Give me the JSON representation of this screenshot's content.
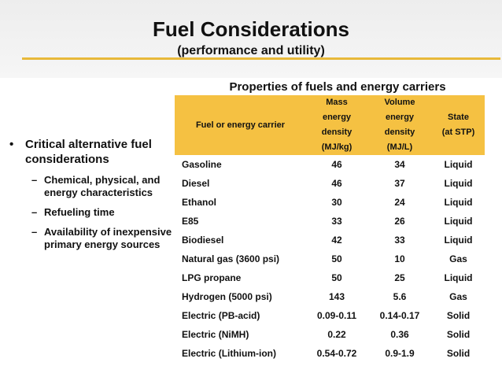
{
  "slide": {
    "title": "Fuel Considerations",
    "subtitle": "(performance and utility)",
    "accent_color": "#e8b93a",
    "header_fill": "#f5c142"
  },
  "bullets": {
    "main": "Critical alternative fuel considerations",
    "subs": [
      "Chemical, physical, and energy characteristics",
      "Refueling time",
      "Availability of inexpensive primary energy sources"
    ]
  },
  "table": {
    "title": "Properties of fuels and energy carriers",
    "headers": {
      "fuel": "Fuel or energy carrier",
      "mass": [
        "Mass",
        "energy",
        "density",
        "(MJ/kg)"
      ],
      "volume": [
        "Volume",
        "energy",
        "density",
        "(MJ/L)"
      ],
      "state": [
        "State",
        "(at STP)"
      ]
    },
    "rows": [
      {
        "fuel": "Gasoline",
        "mass": "46",
        "volume": "34",
        "state": "Liquid"
      },
      {
        "fuel": "Diesel",
        "mass": "46",
        "volume": "37",
        "state": "Liquid"
      },
      {
        "fuel": "Ethanol",
        "mass": "30",
        "volume": "24",
        "state": "Liquid"
      },
      {
        "fuel": "E85",
        "mass": "33",
        "volume": "26",
        "state": "Liquid"
      },
      {
        "fuel": "Biodiesel",
        "mass": "42",
        "volume": "33",
        "state": "Liquid"
      },
      {
        "fuel": "Natural gas (3600 psi)",
        "mass": "50",
        "volume": "10",
        "state": "Gas"
      },
      {
        "fuel": "LPG propane",
        "mass": "50",
        "volume": "25",
        "state": "Liquid"
      },
      {
        "fuel": "Hydrogen (5000 psi)",
        "mass": "143",
        "volume": "5.6",
        "state": "Gas"
      },
      {
        "fuel": "Electric (PB-acid)",
        "mass": "0.09-0.11",
        "volume": "0.14-0.17",
        "state": "Solid"
      },
      {
        "fuel": "Electric (NiMH)",
        "mass": "0.22",
        "volume": "0.36",
        "state": "Solid"
      },
      {
        "fuel": "Electric (Lithium-ion)",
        "mass": "0.54-0.72",
        "volume": "0.9-1.9",
        "state": "Solid"
      }
    ]
  }
}
